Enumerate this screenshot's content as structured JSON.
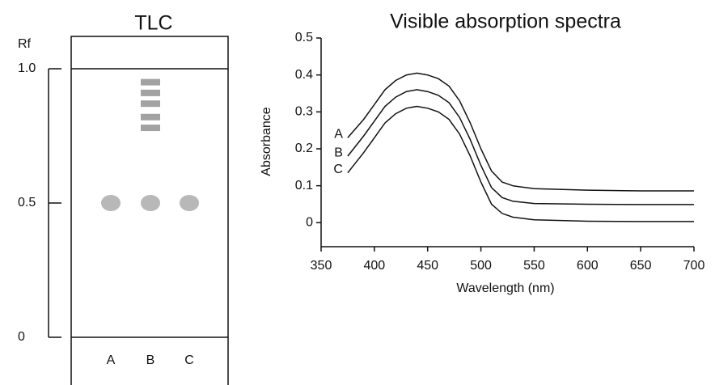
{
  "chart_data": [
    {
      "type": "tlc",
      "title": "TLC",
      "y_label": "Rf",
      "ylim": [
        0,
        1
      ],
      "yticks": [
        0,
        0.5,
        {
          "value": 1,
          "label": "1.0"
        }
      ],
      "categories": [
        "A",
        "B",
        "C"
      ],
      "values": [
        [
          0.5
        ],
        [
          0.5,
          0.78,
          0.82,
          0.87,
          0.91,
          0.95
        ],
        [
          0.5
        ]
      ]
    },
    {
      "type": "line",
      "title": "Visible absorption spectra",
      "x_label": "Wavelength (nm)",
      "y_label": "Absorbance",
      "xlim": [
        350,
        700
      ],
      "xticks": [
        350,
        400,
        450,
        500,
        550,
        600,
        650,
        700
      ],
      "ylim": [
        -0.065,
        0.5
      ],
      "yticks": [
        0,
        0.1,
        0.2,
        0.3,
        0.4,
        0.5
      ],
      "x": [
        375,
        390,
        400,
        410,
        420,
        430,
        440,
        450,
        460,
        470,
        480,
        490,
        500,
        510,
        520,
        530,
        550,
        600,
        650,
        700
      ],
      "series": [
        {
          "name": "A",
          "color": "#111111",
          "values": [
            0.23,
            0.28,
            0.32,
            0.36,
            0.385,
            0.4,
            0.405,
            0.4,
            0.39,
            0.37,
            0.33,
            0.27,
            0.2,
            0.14,
            0.11,
            0.1,
            0.092,
            0.088,
            0.086,
            0.086
          ]
        },
        {
          "name": "B",
          "color": "#111111",
          "values": [
            0.18,
            0.235,
            0.275,
            0.315,
            0.34,
            0.355,
            0.36,
            0.355,
            0.345,
            0.325,
            0.285,
            0.225,
            0.155,
            0.095,
            0.068,
            0.058,
            0.052,
            0.05,
            0.049,
            0.049
          ]
        },
        {
          "name": "C",
          "color": "#111111",
          "values": [
            0.135,
            0.19,
            0.23,
            0.27,
            0.295,
            0.31,
            0.315,
            0.31,
            0.3,
            0.28,
            0.24,
            0.18,
            0.11,
            0.05,
            0.025,
            0.015,
            0.008,
            0.004,
            0.003,
            0.003
          ]
        }
      ]
    }
  ]
}
